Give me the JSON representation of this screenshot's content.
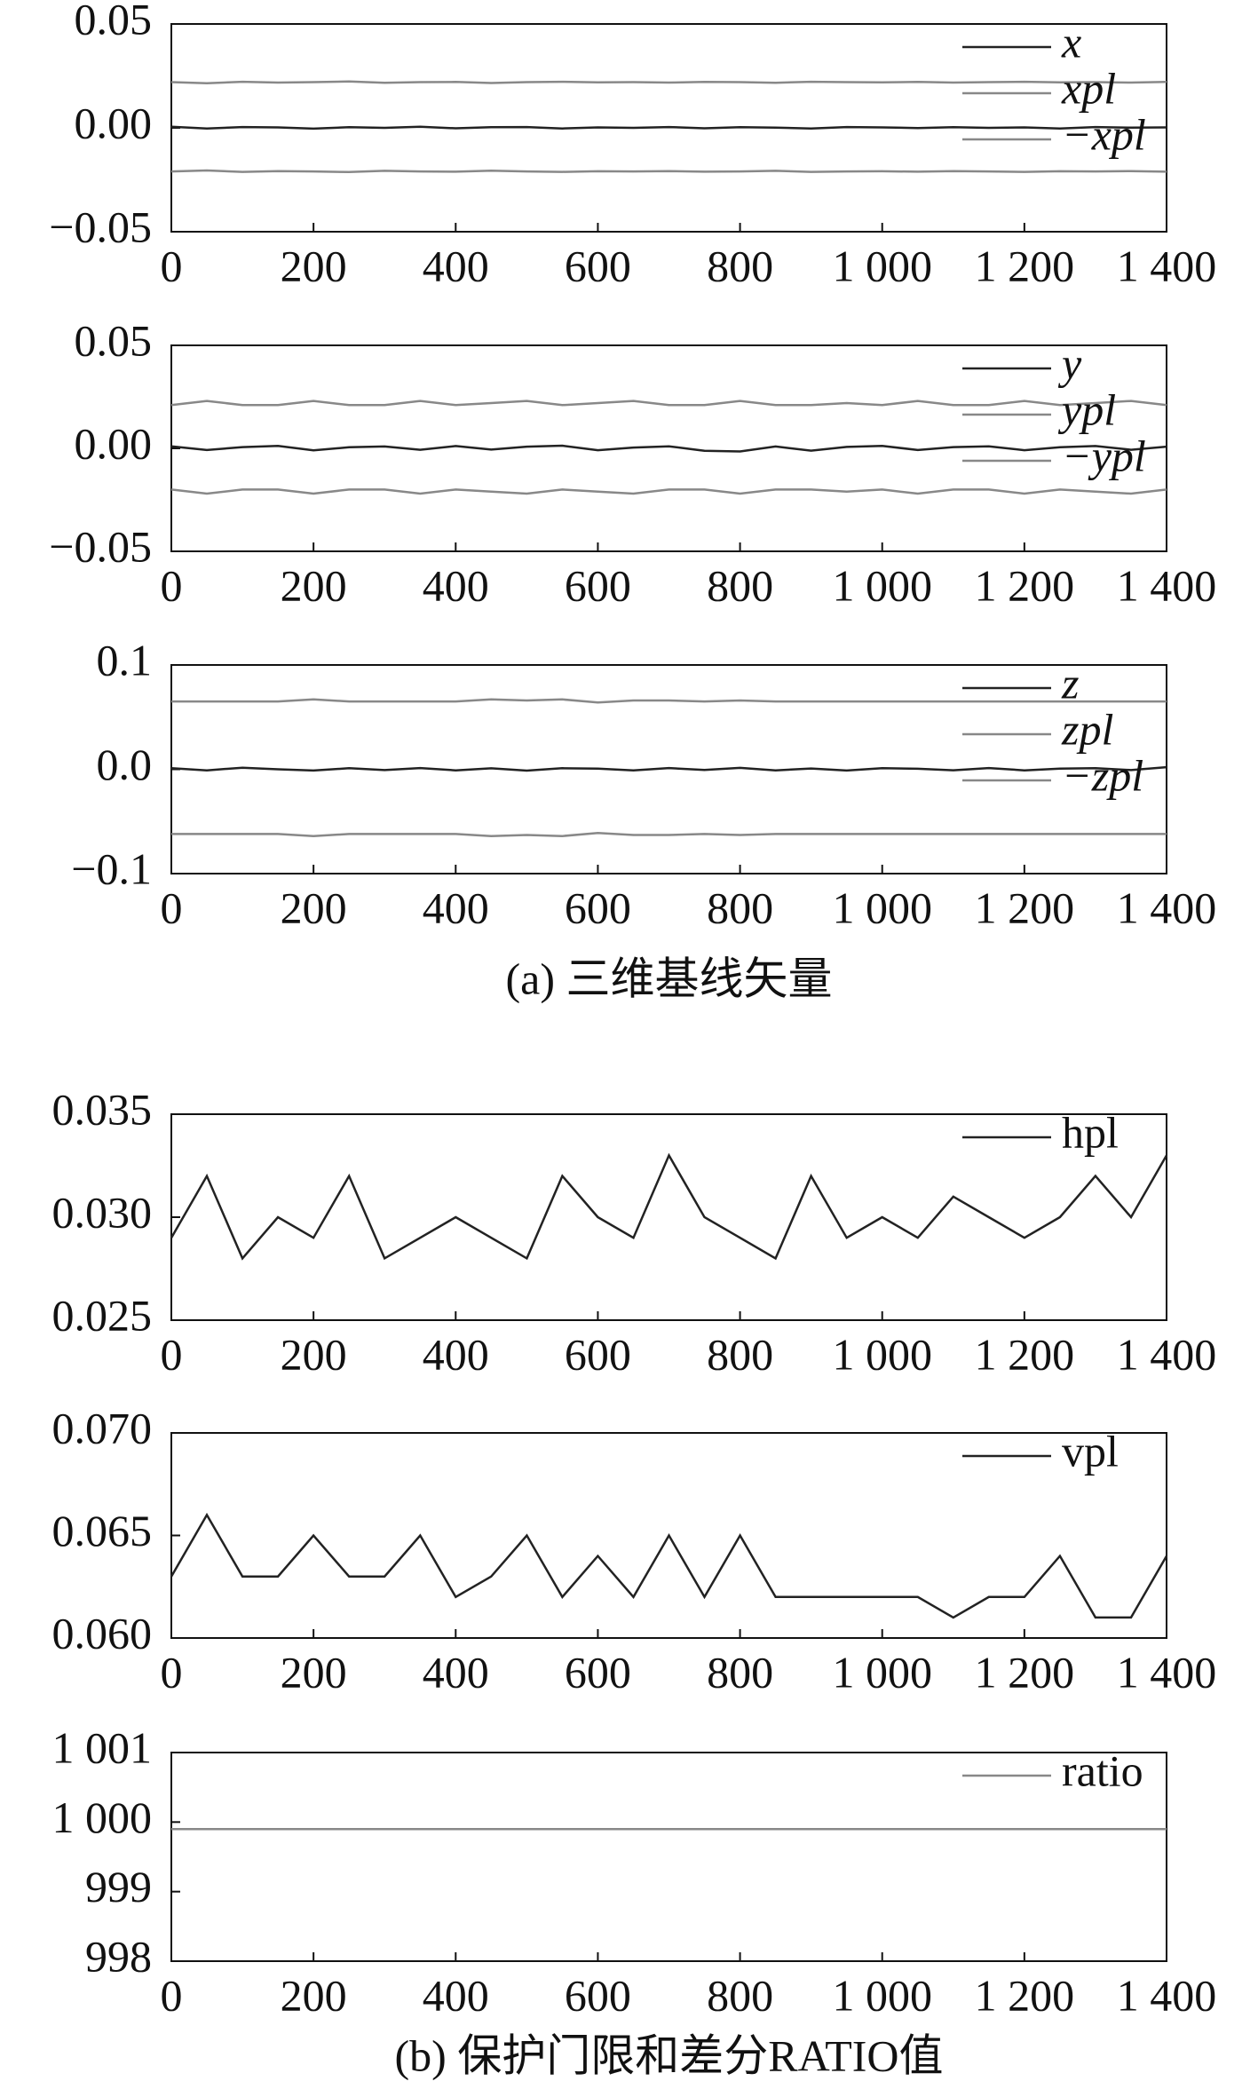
{
  "chart_data": [
    {
      "type": "line",
      "legend": "upper right",
      "xlim": [
        0,
        1400
      ],
      "ylim": [
        -0.05,
        0.05
      ],
      "xticks": [
        0,
        200,
        400,
        600,
        800,
        {
          "value": 1000,
          "label": "1 000"
        },
        {
          "value": 1200,
          "label": "1 200"
        },
        {
          "value": 1400,
          "label": "1 400"
        }
      ],
      "yticks": [
        {
          "value": -0.05,
          "label": "−0.05"
        },
        {
          "value": 0,
          "label": "0.00"
        },
        0.05
      ],
      "x": [
        0,
        50,
        100,
        150,
        200,
        250,
        300,
        350,
        400,
        450,
        500,
        550,
        600,
        650,
        700,
        750,
        800,
        850,
        900,
        950,
        1000,
        1050,
        1100,
        1150,
        1200,
        1250,
        1300,
        1350,
        1400
      ],
      "series": [
        {
          "name": "x",
          "color": "#222222",
          "values": [
            0.0005,
            -0.0003,
            0.0004,
            0.0002,
            -0.0004,
            0.0003,
            0,
            0.0005,
            -0.0002,
            0.0003,
            0.0004,
            -0.0003,
            0.0002,
            0,
            0.0004,
            -0.0002,
            0.0003,
            0.0001,
            -0.0003,
            0.0004,
            0.0002,
            -0.0001,
            0.0003,
            0,
            0.0002,
            -0.0003,
            0.0004,
            0.0001,
            0.0002
          ]
        },
        {
          "name": "xpl",
          "color": "#888888",
          "values": [
            0.022,
            0.0215,
            0.0222,
            0.0218,
            0.022,
            0.0223,
            0.0217,
            0.022,
            0.0221,
            0.0216,
            0.022,
            0.0222,
            0.0219,
            0.022,
            0.0218,
            0.0221,
            0.022,
            0.0217,
            0.0222,
            0.022,
            0.0219,
            0.0221,
            0.0218,
            0.022,
            0.0222,
            0.0219,
            0.022,
            0.0218,
            0.0221
          ]
        },
        {
          "name": "−xpl",
          "color": "#888888",
          "values": [
            -0.021,
            -0.0205,
            -0.0212,
            -0.0208,
            -0.021,
            -0.0213,
            -0.0207,
            -0.021,
            -0.0211,
            -0.0206,
            -0.021,
            -0.0212,
            -0.0209,
            -0.021,
            -0.0208,
            -0.0211,
            -0.021,
            -0.0207,
            -0.0212,
            -0.021,
            -0.0209,
            -0.0211,
            -0.0208,
            -0.021,
            -0.0212,
            -0.0209,
            -0.021,
            -0.0208,
            -0.0211
          ]
        }
      ]
    },
    {
      "type": "line",
      "legend": "upper right",
      "xlim": [
        0,
        1400
      ],
      "ylim": [
        -0.05,
        0.05
      ],
      "xticks": [
        0,
        200,
        400,
        600,
        800,
        {
          "value": 1000,
          "label": "1 000"
        },
        {
          "value": 1200,
          "label": "1 200"
        },
        {
          "value": 1400,
          "label": "1 400"
        }
      ],
      "yticks": [
        {
          "value": -0.05,
          "label": "−0.05"
        },
        {
          "value": 0,
          "label": "0.00"
        },
        0.05
      ],
      "x": [
        0,
        50,
        100,
        150,
        200,
        250,
        300,
        350,
        400,
        450,
        500,
        550,
        600,
        650,
        700,
        750,
        800,
        850,
        900,
        950,
        1000,
        1050,
        1100,
        1150,
        1200,
        1250,
        1300,
        1350,
        1400
      ],
      "series": [
        {
          "name": "y",
          "color": "#222222",
          "values": [
            0.001,
            -0.0008,
            0.0006,
            0.0012,
            -0.001,
            0.0005,
            0.0009,
            -0.0007,
            0.0011,
            -0.0006,
            0.0008,
            0.0013,
            -0.0009,
            0.0004,
            0.001,
            -0.0012,
            -0.0015,
            0.0009,
            -0.0011,
            0.0007,
            0.0012,
            -0.0008,
            0.0006,
            0.001,
            -0.0009,
            0.0005,
            0.0011,
            -0.0007,
            0.0008
          ]
        },
        {
          "name": "ypl",
          "color": "#888888",
          "values": [
            0.021,
            0.023,
            0.021,
            0.021,
            0.023,
            0.021,
            0.021,
            0.023,
            0.021,
            0.022,
            0.023,
            0.021,
            0.022,
            0.023,
            0.021,
            0.021,
            0.023,
            0.021,
            0.021,
            0.022,
            0.021,
            0.023,
            0.021,
            0.021,
            0.023,
            0.021,
            0.022,
            0.023,
            0.021
          ]
        },
        {
          "name": "−ypl",
          "color": "#888888",
          "values": [
            -0.02,
            -0.022,
            -0.02,
            -0.02,
            -0.022,
            -0.02,
            -0.02,
            -0.022,
            -0.02,
            -0.021,
            -0.022,
            -0.02,
            -0.021,
            -0.022,
            -0.02,
            -0.02,
            -0.022,
            -0.02,
            -0.02,
            -0.021,
            -0.02,
            -0.022,
            -0.02,
            -0.02,
            -0.022,
            -0.02,
            -0.021,
            -0.022,
            -0.02
          ]
        }
      ]
    },
    {
      "type": "line",
      "legend": "upper right",
      "xlim": [
        0,
        1400
      ],
      "ylim": [
        -0.1,
        0.1
      ],
      "xticks": [
        0,
        200,
        400,
        600,
        800,
        {
          "value": 1000,
          "label": "1 000"
        },
        {
          "value": 1200,
          "label": "1 200"
        },
        {
          "value": 1400,
          "label": "1 400"
        }
      ],
      "yticks": [
        {
          "value": -0.1,
          "label": "−0.1"
        },
        {
          "value": 0,
          "label": "0.0"
        },
        0.1
      ],
      "x": [
        0,
        50,
        100,
        150,
        200,
        250,
        300,
        350,
        400,
        450,
        500,
        550,
        600,
        650,
        700,
        750,
        800,
        850,
        900,
        950,
        1000,
        1050,
        1100,
        1150,
        1200,
        1250,
        1300,
        1350,
        1400
      ],
      "series": [
        {
          "name": "z",
          "color": "#222222",
          "values": [
            0.001,
            -0.001,
            0.0015,
            0,
            -0.0012,
            0.001,
            -0.0008,
            0.0012,
            -0.001,
            0.0009,
            -0.0013,
            0.001,
            0.0006,
            -0.0011,
            0.0012,
            -0.0007,
            0.0014,
            -0.001,
            0.0008,
            -0.0012,
            0.001,
            0.0005,
            -0.0009,
            0.0012,
            -0.001,
            0.0007,
            0.0011,
            -0.0008,
            0.002
          ]
        },
        {
          "name": "zpl",
          "color": "#888888",
          "values": [
            0.065,
            0.065,
            0.065,
            0.065,
            0.067,
            0.065,
            0.065,
            0.065,
            0.065,
            0.067,
            0.066,
            0.067,
            0.064,
            0.066,
            0.066,
            0.065,
            0.066,
            0.065,
            0.065,
            0.065,
            0.065,
            0.065,
            0.065,
            0.065,
            0.065,
            0.065,
            0.065,
            0.065,
            0.065
          ]
        },
        {
          "name": "−zpl",
          "color": "#888888",
          "values": [
            -0.062,
            -0.062,
            -0.062,
            -0.062,
            -0.064,
            -0.062,
            -0.062,
            -0.062,
            -0.062,
            -0.064,
            -0.063,
            -0.064,
            -0.061,
            -0.063,
            -0.063,
            -0.062,
            -0.063,
            -0.062,
            -0.062,
            -0.062,
            -0.062,
            -0.062,
            -0.062,
            -0.062,
            -0.062,
            -0.062,
            -0.062,
            -0.062,
            -0.062
          ]
        }
      ],
      "caption": "(a) 三维基线矢量"
    },
    {
      "type": "line",
      "legend": "upper right",
      "xlim": [
        0,
        1400
      ],
      "ylim": [
        0.025,
        0.035
      ],
      "xticks": [
        0,
        200,
        400,
        600,
        800,
        {
          "value": 1000,
          "label": "1 000"
        },
        {
          "value": 1200,
          "label": "1 200"
        },
        {
          "value": 1400,
          "label": "1 400"
        }
      ],
      "yticks": [
        0.025,
        {
          "value": 0.03,
          "label": "0.030"
        },
        0.035
      ],
      "x": [
        0,
        50,
        100,
        150,
        200,
        250,
        300,
        350,
        400,
        450,
        500,
        550,
        600,
        650,
        700,
        750,
        800,
        850,
        900,
        950,
        1000,
        1050,
        1100,
        1150,
        1200,
        1250,
        1300,
        1350,
        1400
      ],
      "series": [
        {
          "name": "hpl",
          "color": "#222222",
          "values": [
            0.029,
            0.032,
            0.028,
            0.03,
            0.029,
            0.032,
            0.028,
            0.029,
            0.03,
            0.029,
            0.028,
            0.032,
            0.03,
            0.029,
            0.033,
            0.03,
            0.029,
            0.028,
            0.032,
            0.029,
            0.03,
            0.029,
            0.031,
            0.03,
            0.029,
            0.03,
            0.032,
            0.03,
            0.033
          ]
        }
      ]
    },
    {
      "type": "line",
      "legend": "upper right",
      "xlim": [
        0,
        1400
      ],
      "ylim": [
        0.06,
        0.07
      ],
      "xticks": [
        0,
        200,
        400,
        600,
        800,
        {
          "value": 1000,
          "label": "1 000"
        },
        {
          "value": 1200,
          "label": "1 200"
        },
        {
          "value": 1400,
          "label": "1 400"
        }
      ],
      "yticks": [
        {
          "value": 0.06,
          "label": "0.060"
        },
        0.065,
        {
          "value": 0.07,
          "label": "0.070"
        }
      ],
      "x": [
        0,
        50,
        100,
        150,
        200,
        250,
        300,
        350,
        400,
        450,
        500,
        550,
        600,
        650,
        700,
        750,
        800,
        850,
        900,
        950,
        1000,
        1050,
        1100,
        1150,
        1200,
        1250,
        1300,
        1350,
        1400
      ],
      "series": [
        {
          "name": "vpl",
          "color": "#222222",
          "values": [
            0.063,
            0.066,
            0.063,
            0.063,
            0.065,
            0.063,
            0.063,
            0.065,
            0.062,
            0.063,
            0.065,
            0.062,
            0.064,
            0.062,
            0.065,
            0.062,
            0.065,
            0.062,
            0.062,
            0.062,
            0.062,
            0.062,
            0.061,
            0.062,
            0.062,
            0.064,
            0.061,
            0.061,
            0.064
          ]
        }
      ]
    },
    {
      "type": "line",
      "legend": "upper right",
      "xlim": [
        0,
        1400
      ],
      "ylim": [
        998,
        1001
      ],
      "xticks": [
        0,
        200,
        400,
        600,
        800,
        {
          "value": 1000,
          "label": "1 000"
        },
        {
          "value": 1200,
          "label": "1 200"
        },
        {
          "value": 1400,
          "label": "1 400"
        }
      ],
      "yticks": [
        998,
        999,
        {
          "value": 1000,
          "label": "1 000"
        },
        {
          "value": 1001,
          "label": "1 001"
        }
      ],
      "x": [
        0,
        50,
        100,
        150,
        200,
        250,
        300,
        350,
        400,
        450,
        500,
        550,
        600,
        650,
        700,
        750,
        800,
        850,
        900,
        950,
        1000,
        1050,
        1100,
        1150,
        1200,
        1250,
        1300,
        1350,
        1400
      ],
      "series": [
        {
          "name": "ratio",
          "color": "#888888",
          "values": [
            999.9,
            999.9,
            999.9,
            999.9,
            999.9,
            999.9,
            999.9,
            999.9,
            999.9,
            999.9,
            999.9,
            999.9,
            999.9,
            999.9,
            999.9,
            999.9,
            999.9,
            999.9,
            999.9,
            999.9,
            999.9,
            999.9,
            999.9,
            999.9,
            999.9,
            999.9,
            999.9,
            999.9,
            999.9
          ]
        }
      ],
      "caption": "(b) 保护门限和差分RATIO值"
    }
  ]
}
